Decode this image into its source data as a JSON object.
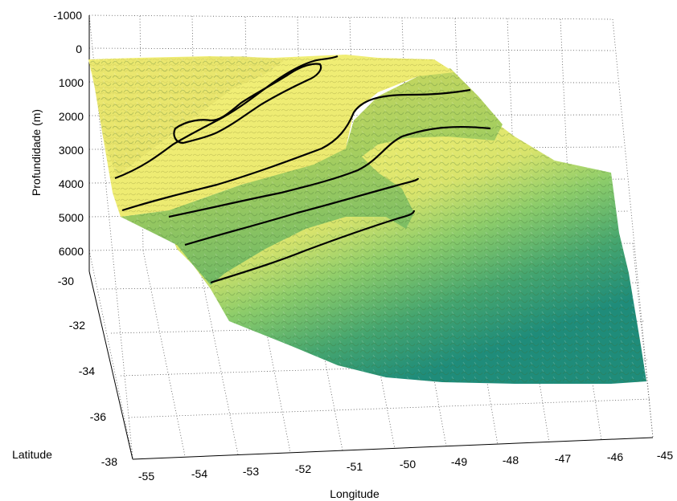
{
  "chart_data": {
    "type": "surface",
    "xlabel": "Longitude",
    "ylabel": "Latitude",
    "zlabel": "Profundidade (m)",
    "x_ticks": [
      "-55",
      "-54",
      "-53",
      "-52",
      "-51",
      "-50",
      "-49",
      "-48",
      "-47",
      "-46",
      "-45"
    ],
    "y_ticks": [
      "-30",
      "-32",
      "-34",
      "-36",
      "-38"
    ],
    "z_ticks": [
      "-1000",
      "0",
      "1000",
      "2000",
      "3000",
      "4000",
      "5000",
      "6000"
    ],
    "xlim": [
      -55,
      -45
    ],
    "ylim": [
      -38,
      -30
    ],
    "zlim": [
      -1000,
      6000
    ],
    "z_reversed": true,
    "grid": true,
    "colormap": [
      "#f2ef72",
      "#a9d86a",
      "#5cb06c",
      "#1f8c7a"
    ],
    "contour_color": "#000000"
  }
}
